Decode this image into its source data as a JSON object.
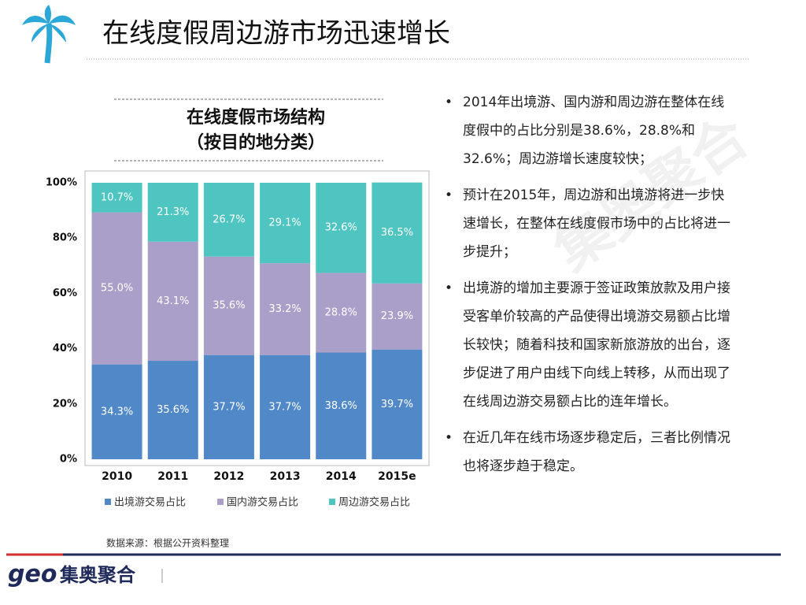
{
  "slide_title": "在线度假周边游市场迅速增长",
  "chart_data": {
    "type": "stacked-bar",
    "title_lines": [
      "在线度假市场结构",
      "（按目的地分类）"
    ],
    "categories": [
      "2010",
      "2011",
      "2012",
      "2013",
      "2014",
      "2015e"
    ],
    "series": [
      {
        "name": "出境游交易占比",
        "color": "#5088c8",
        "values": [
          34.3,
          35.6,
          37.7,
          37.7,
          38.6,
          39.7
        ],
        "value_labels": [
          "34.3%",
          "35.6%",
          "37.7%",
          "37.7%",
          "38.6%",
          "39.7%"
        ]
      },
      {
        "name": "国内游交易占比",
        "color": "#aa9fc8",
        "values": [
          55.0,
          43.1,
          35.6,
          33.2,
          28.8,
          23.9
        ],
        "value_labels": [
          "55.0%",
          "43.1%",
          "35.6%",
          "33.2%",
          "28.8%",
          "23.9%"
        ]
      },
      {
        "name": "周边游交易占比",
        "color": "#4ec5c1",
        "values": [
          10.7,
          21.3,
          26.7,
          29.1,
          32.6,
          36.5
        ],
        "value_labels": [
          "10.7%",
          "21.3%",
          "26.7%",
          "29.1%",
          "32.6%",
          "36.5%"
        ]
      }
    ],
    "ylim": [
      0,
      100
    ],
    "yticks": [
      {
        "value": 0,
        "label": "0%"
      },
      {
        "value": 20,
        "label": "20%"
      },
      {
        "value": 40,
        "label": "40%"
      },
      {
        "value": 60,
        "label": "60%"
      },
      {
        "value": 80,
        "label": "80%"
      },
      {
        "value": 100,
        "label": "100%"
      }
    ],
    "grid": false
  },
  "bullets": [
    "2014年出境游、国内游和周边游在整体在线度假中的占比分别是38.6%，28.8%和32.6%；周边游增长速度较快；",
    "预计在2015年，周边游和出境游将进一步快速增长，在整体在线度假市场中的占比将进一步提升；",
    "出境游的增加主要源于签证政策放款及用户接受客单价较高的产品使得出境游交易额占比增长较快；随着科技和国家新旅游放的出台，逐步促进了用户由线下向线上转移，从而出现了在线周边游交易额占比的连年增长。",
    "在近几年在线市场逐步稳定后，三者比例情况也将逐步趋于稳定。"
  ],
  "source": "数据来源：根据公开资料整理",
  "logo": {
    "mark": "geo",
    "name": "集奥聚合"
  },
  "watermark": "集奥聚合"
}
